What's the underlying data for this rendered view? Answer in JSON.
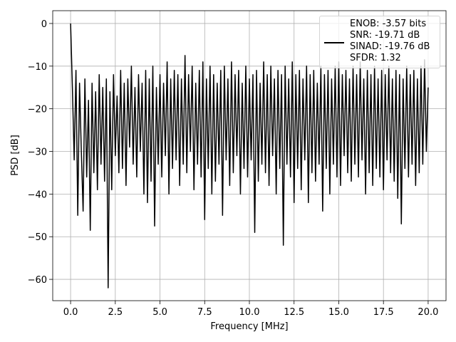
{
  "chart_data": {
    "type": "line",
    "xlabel": "Frequency [MHz]",
    "ylabel": "PSD [dB]",
    "xlim": [
      -1,
      21
    ],
    "ylim": [
      -65,
      3
    ],
    "xticks": [
      {
        "value": 0,
        "label": "0.0"
      },
      2.5,
      {
        "value": 5,
        "label": "5.0"
      },
      7.5,
      {
        "value": 10,
        "label": "10.0"
      },
      12.5,
      {
        "value": 15,
        "label": "15.0"
      },
      17.5,
      {
        "value": 20,
        "label": "20.0"
      }
    ],
    "yticks": [
      {
        "value": -60,
        "label": "−60"
      },
      {
        "value": -50,
        "label": "−50"
      },
      {
        "value": -40,
        "label": "−40"
      },
      {
        "value": -30,
        "label": "−30"
      },
      {
        "value": -20,
        "label": "−20"
      },
      {
        "value": -10,
        "label": "−10"
      },
      0
    ],
    "grid": true,
    "legend": "upper right",
    "x": [
      0,
      0.1,
      0.2,
      0.3,
      0.4,
      0.5,
      0.6,
      0.7,
      0.8,
      0.9,
      1,
      1.1,
      1.2,
      1.3,
      1.4,
      1.5,
      1.6,
      1.7,
      1.8,
      1.9,
      2,
      2.1,
      2.2,
      2.3,
      2.4,
      2.5,
      2.6,
      2.7,
      2.8,
      2.9,
      3,
      3.1,
      3.2,
      3.3,
      3.4,
      3.5,
      3.6,
      3.7,
      3.8,
      3.9,
      4,
      4.1,
      4.2,
      4.3,
      4.4,
      4.5,
      4.6,
      4.7,
      4.8,
      4.9,
      5,
      5.1,
      5.2,
      5.3,
      5.4,
      5.5,
      5.6,
      5.7,
      5.8,
      5.9,
      6,
      6.1,
      6.2,
      6.3,
      6.4,
      6.5,
      6.6,
      6.7,
      6.8,
      6.9,
      7,
      7.1,
      7.2,
      7.3,
      7.4,
      7.5,
      7.6,
      7.7,
      7.8,
      7.9,
      8,
      8.1,
      8.2,
      8.3,
      8.4,
      8.5,
      8.6,
      8.7,
      8.8,
      8.9,
      9,
      9.1,
      9.2,
      9.3,
      9.4,
      9.5,
      9.6,
      9.7,
      9.8,
      9.9,
      10,
      10.1,
      10.2,
      10.3,
      10.4,
      10.5,
      10.6,
      10.7,
      10.8,
      10.9,
      11,
      11.1,
      11.2,
      11.3,
      11.4,
      11.5,
      11.6,
      11.7,
      11.8,
      11.9,
      12,
      12.1,
      12.2,
      12.3,
      12.4,
      12.5,
      12.6,
      12.7,
      12.8,
      12.9,
      13,
      13.1,
      13.2,
      13.3,
      13.4,
      13.5,
      13.6,
      13.7,
      13.8,
      13.9,
      14,
      14.1,
      14.2,
      14.3,
      14.4,
      14.5,
      14.6,
      14.7,
      14.8,
      14.9,
      15,
      15.1,
      15.2,
      15.3,
      15.4,
      15.5,
      15.6,
      15.7,
      15.8,
      15.9,
      16,
      16.1,
      16.2,
      16.3,
      16.4,
      16.5,
      16.6,
      16.7,
      16.8,
      16.9,
      17,
      17.1,
      17.2,
      17.3,
      17.4,
      17.5,
      17.6,
      17.7,
      17.8,
      17.9,
      18,
      18.1,
      18.2,
      18.3,
      18.4,
      18.5,
      18.6,
      18.7,
      18.8,
      18.9,
      19,
      19.1,
      19.2,
      19.3,
      19.4,
      19.5,
      19.6,
      19.7,
      19.8,
      19.9,
      20
    ],
    "series": [
      {
        "name": "ENOB: -3.57 bits\nSNR: -19.71 dB\nSINAD: -19.76 dB\nSFDR: 1.32",
        "color": "#000000",
        "values": [
          0,
          -15,
          -32,
          -11,
          -45,
          -14,
          -30,
          -44,
          -13,
          -36,
          -18,
          -48.5,
          -14,
          -35,
          -16,
          -39,
          -12,
          -33,
          -15,
          -37,
          -13,
          -62,
          -16,
          -39,
          -12,
          -31,
          -17,
          -35,
          -11,
          -34,
          -14,
          -38,
          -13,
          -29,
          -10,
          -33,
          -15,
          -36,
          -12,
          -30,
          -14,
          -40,
          -11,
          -42,
          -13,
          -37,
          -10,
          -47.5,
          -15,
          -33,
          -12,
          -36,
          -14,
          -31,
          -9,
          -40,
          -13,
          -34,
          -11,
          -32,
          -12,
          -38,
          -13,
          -33,
          -7.5,
          -35,
          -12,
          -30,
          -10,
          -39,
          -14,
          -33,
          -11,
          -36,
          -9,
          -46,
          -13,
          -34,
          -10,
          -40,
          -12,
          -37,
          -14,
          -33,
          -11,
          -45,
          -10,
          -32,
          -13,
          -38,
          -9,
          -35,
          -12,
          -31,
          -11,
          -40,
          -14,
          -34,
          -10,
          -36,
          -13,
          -32,
          -12,
          -49,
          -11,
          -37,
          -14,
          -33,
          -9,
          -35,
          -12,
          -38,
          -10,
          -31,
          -13,
          -40,
          -11,
          -34,
          -12,
          -52,
          -10,
          -33,
          -13,
          -36,
          -9,
          -42,
          -12,
          -34,
          -11,
          -39,
          -13,
          -32,
          -10,
          -42,
          -12,
          -35,
          -11,
          -37,
          -14,
          -33,
          -10,
          -44,
          -12,
          -34,
          -11,
          -40,
          -13,
          -33,
          -10,
          -36,
          -9,
          -38,
          -12,
          -31,
          -11,
          -35,
          -13,
          -37,
          -10,
          -33,
          -12,
          -36,
          -9,
          -32,
          -13,
          -40,
          -11,
          -35,
          -12,
          -38,
          -10,
          -34,
          -13,
          -36,
          -11,
          -39,
          -12,
          -32,
          -10,
          -35,
          -13,
          -37,
          -11,
          -41,
          -12,
          -47,
          -13,
          -34,
          -10,
          -36,
          -12,
          -33,
          -11,
          -38,
          -13,
          -35,
          -10,
          -33,
          -8.5,
          -30,
          -15
        ]
      }
    ]
  }
}
